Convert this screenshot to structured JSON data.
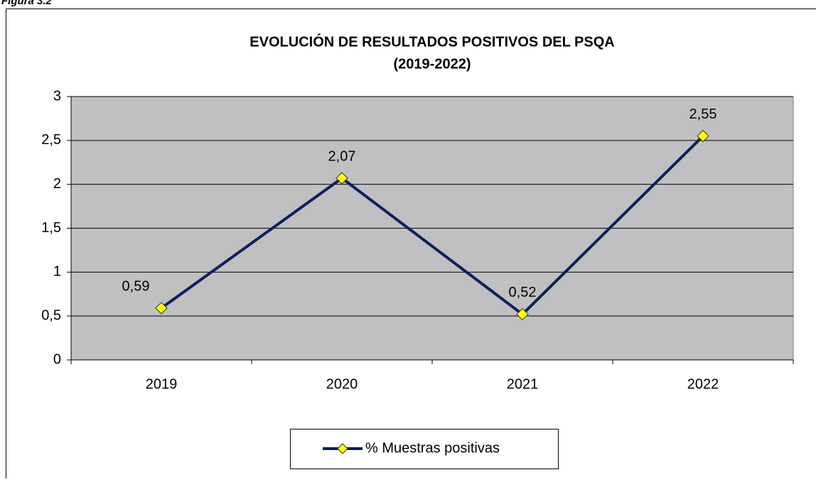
{
  "caption": "Figura 3.2",
  "chart_data": {
    "type": "line",
    "title": "EVOLUCIÓN  DE RESULTADOS POSITIVOS DEL PSQA",
    "subtitle": "(2019-2022)",
    "categories": [
      "2019",
      "2020",
      "2021",
      "2022"
    ],
    "series": [
      {
        "name": "% Muestras positivas",
        "color": "#0f1f5c",
        "marker_color": "#ffff00",
        "values": [
          0.59,
          2.07,
          0.52,
          2.55
        ],
        "value_labels": [
          "0,59",
          "2,07",
          "0,52",
          "2,55"
        ]
      }
    ],
    "ylim": [
      0,
      3
    ],
    "yticks": [
      0,
      {
        "value": 0.5,
        "label": "0,5"
      },
      1,
      {
        "value": 1.5,
        "label": "1,5"
      },
      2,
      {
        "value": 2.5,
        "label": "2,5"
      },
      3
    ],
    "grid": true,
    "plot_background": "#c0c0c0",
    "legend": "bottom"
  }
}
